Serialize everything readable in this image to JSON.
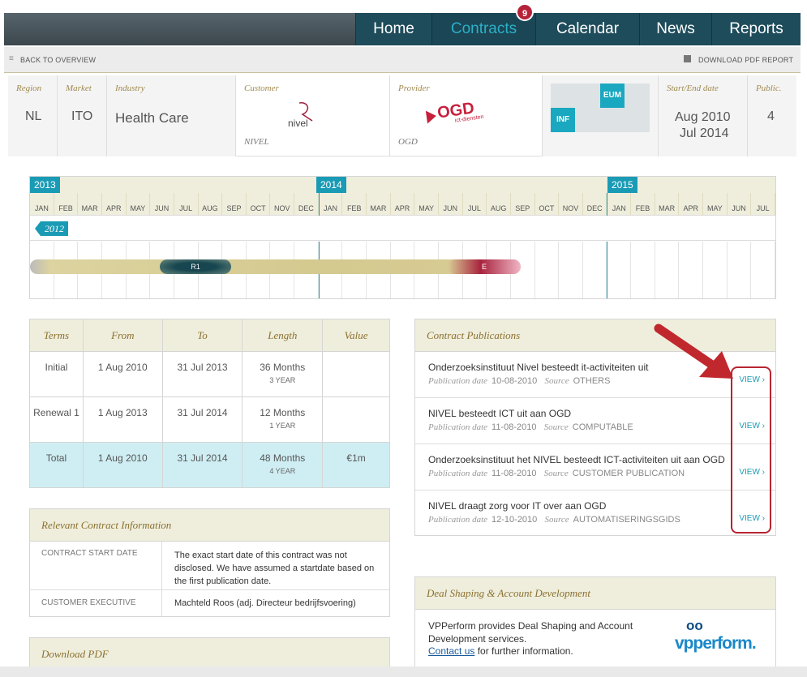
{
  "nav": {
    "items": [
      "Home",
      "Contracts",
      "Calendar",
      "News",
      "Reports"
    ],
    "badge": "9"
  },
  "subbar": {
    "back": "BACK TO OVERVIEW",
    "download": "DOWNLOAD PDF REPORT"
  },
  "info": {
    "region_label": "Region",
    "region": "NL",
    "market_label": "Market",
    "market": "ITO",
    "industry_label": "Industry",
    "industry": "Health Care",
    "customer_label": "Customer",
    "customer": "NIVEL",
    "customer_logo": "nivel",
    "provider_label": "Provider",
    "provider": "OGD",
    "provider_logo": "OGD",
    "provider_logo_sub": "ict-diensten",
    "tag_eum": "EUM",
    "tag_inf": "INF",
    "dates_label": "Start/End date",
    "start": "Aug 2010",
    "end": "Jul 2014",
    "public_label": "Public.",
    "public": "4"
  },
  "timeline": {
    "years": [
      "2013",
      "2014",
      "2015"
    ],
    "prev_year": "2012",
    "months": [
      "JAN",
      "FEB",
      "MAR",
      "APR",
      "MAY",
      "JUN",
      "JUL",
      "AUG",
      "SEP",
      "OCT",
      "NOV",
      "DEC",
      "JAN",
      "FEB",
      "MAR",
      "APR",
      "MAY",
      "JUN",
      "JUL",
      "AUG",
      "SEP",
      "OCT",
      "NOV",
      "DEC",
      "JAN",
      "FEB",
      "MAR",
      "APR",
      "MAY",
      "JUN",
      "JUL"
    ],
    "r1": "R1",
    "e": "E"
  },
  "terms": {
    "headers": [
      "Terms",
      "From",
      "To",
      "Length",
      "Value"
    ],
    "rows": [
      {
        "term": "Initial",
        "from": "1 Aug 2010",
        "to": "31 Jul 2013",
        "length": "36 Months",
        "years": "3 YEAR",
        "value": ""
      },
      {
        "term": "Renewal 1",
        "from": "1 Aug 2013",
        "to": "31 Jul 2014",
        "length": "12 Months",
        "years": "1 YEAR",
        "value": ""
      },
      {
        "term": "Total",
        "from": "1 Aug 2010",
        "to": "31 Jul 2014",
        "length": "48 Months",
        "years": "4 YEAR",
        "value": "€1m"
      }
    ]
  },
  "relevant": {
    "title": "Relevant Contract Information",
    "rows": [
      {
        "k": "CONTRACT START DATE",
        "v": "The exact start date of this contract was not disclosed. We have assumed a startdate based on the first publication date."
      },
      {
        "k": "CUSTOMER EXECUTIVE",
        "v": "Machteld Roos (adj. Directeur bedrijfsvoering)"
      }
    ]
  },
  "download": {
    "title": "Download PDF"
  },
  "publications": {
    "title": "Contract Publications",
    "date_label": "Publication date",
    "source_label": "Source",
    "view": "VIEW",
    "items": [
      {
        "title": "Onderzoeksinstituut Nivel besteedt it-activiteiten uit",
        "date": "10-08-2010",
        "source": "OTHERS"
      },
      {
        "title": "NIVEL besteedt ICT uit aan OGD",
        "date": "11-08-2010",
        "source": "COMPUTABLE"
      },
      {
        "title": "Onderzoeksinstituut het NIVEL besteedt ICT-activiteiten uit aan OGD",
        "date": "11-08-2010",
        "source": "CUSTOMER PUBLICATION"
      },
      {
        "title": "NIVEL draagt zorg voor IT over aan OGD",
        "date": "12-10-2010",
        "source": "AUTOMATISERINGSGIDS"
      }
    ]
  },
  "deal": {
    "title": "Deal Shaping & Account Development",
    "text1": "VPPerform provides Deal Shaping and Account Development services.",
    "link": "Contact us",
    "text2": " for further information.",
    "logo": "vpperform."
  }
}
